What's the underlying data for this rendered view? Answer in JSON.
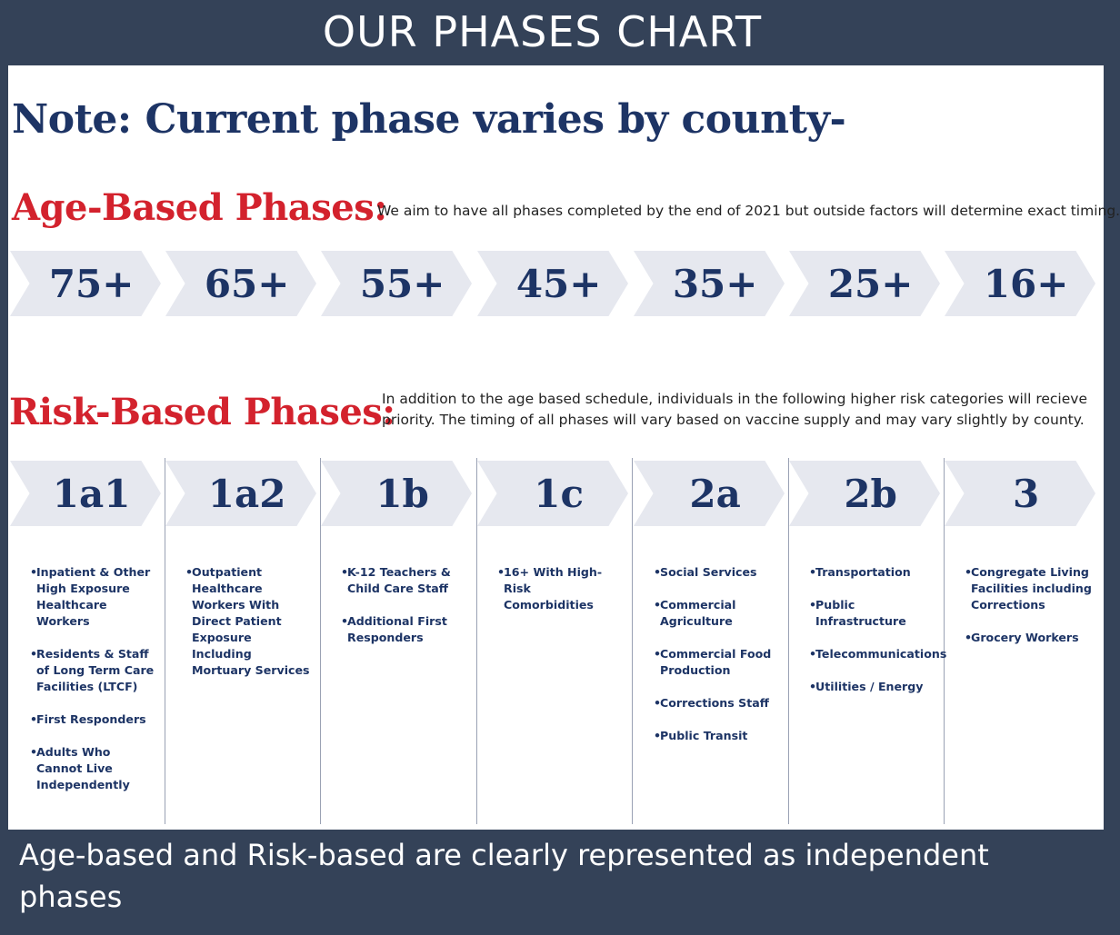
{
  "header": {
    "title": "OUR PHASES CHART"
  },
  "note": "Note: Current phase varies by county-",
  "age_based": {
    "title": "Age-Based Phases:",
    "description": "We aim to have all phases completed by the end of 2021 but outside factors will determine exact timing.",
    "phases": [
      "75+",
      "65+",
      "55+",
      "45+",
      "35+",
      "25+",
      "16+"
    ]
  },
  "risk_based": {
    "title": "Risk-Based Phases:",
    "description": "In addition to the age based schedule, individuals in the following higher risk categories will recieve priority. The timing of all phases will vary based on vaccine supply and may vary slightly by county.",
    "phases": [
      {
        "label": "1a1",
        "items": [
          "Inpatient & Other High Exposure Healthcare Workers",
          "Residents & Staff of Long Term Care Facilities (LTCF)",
          "First Responders",
          "Adults Who Cannot Live Independently"
        ]
      },
      {
        "label": "1a2",
        "items": [
          "Outpatient Healthcare Workers With Direct Patient Exposure Including Mortuary Services"
        ]
      },
      {
        "label": "1b",
        "items": [
          "K-12 Teachers & Child Care Staff",
          "Additional First Responders"
        ]
      },
      {
        "label": "1c",
        "items": [
          "16+ With High-Risk Comorbidities"
        ]
      },
      {
        "label": "2a",
        "items": [
          "Social Services",
          "Commercial Agriculture",
          "Commercial Food Production",
          "Corrections Staff",
          "Public Transit"
        ]
      },
      {
        "label": "2b",
        "items": [
          "Transportation",
          "Public Infrastructure",
          "Telecommunications",
          "Utilities / Energy"
        ]
      },
      {
        "label": "3",
        "items": [
          "Congregate Living Facilities including Corrections",
          "Grocery Workers"
        ]
      }
    ]
  },
  "footer": {
    "text": "Age-based and Risk-based are clearly represented as independent phases"
  },
  "colors": {
    "navy": "#1d3465",
    "red": "#d3222d",
    "background": "#344258",
    "chevron": "#e6e8ef"
  }
}
